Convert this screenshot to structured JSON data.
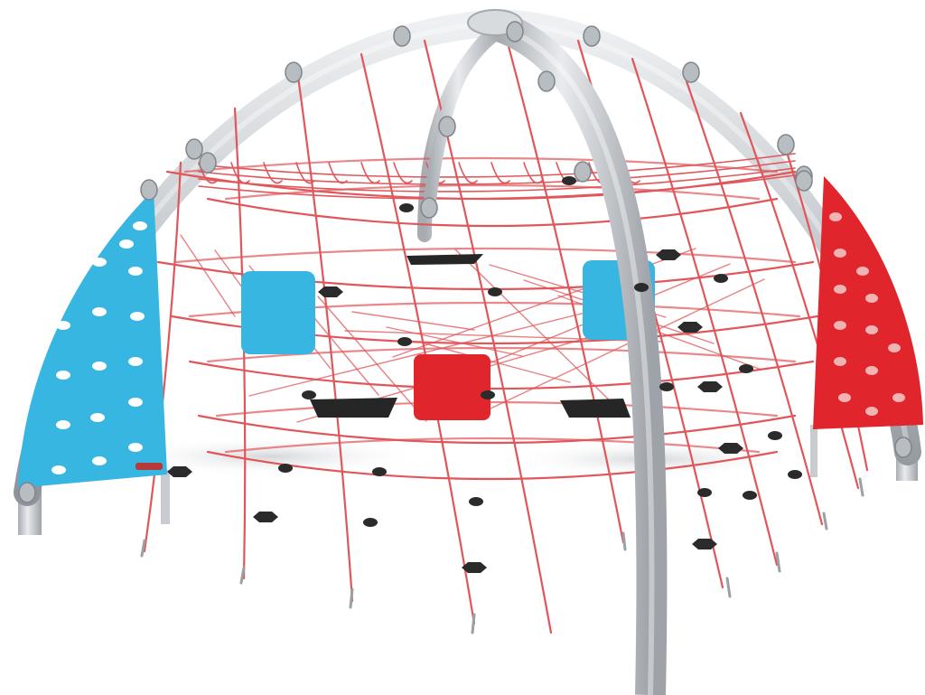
{
  "image": {
    "subject": "playground-rope-dome-climber",
    "colors": {
      "background": "#ffffff",
      "frame_light": "#e4e7ea",
      "frame_mid": "#b9bec3",
      "frame_dark": "#8d9298",
      "rope": "#e0565a",
      "rope_light": "#ef9a9c",
      "panel_blue": "#36b6e0",
      "panel_red": "#e0262c",
      "foothold": "#2b2b2b",
      "shadow": "#d6d8da"
    },
    "elements": [
      "steel-arch-frame",
      "center-arch-pole",
      "rope-net",
      "blue-climbing-panel",
      "red-climbing-panel",
      "blue-square-pads",
      "red-square-pad",
      "black-mesh-mats",
      "footholds",
      "anchor-spikes"
    ]
  }
}
